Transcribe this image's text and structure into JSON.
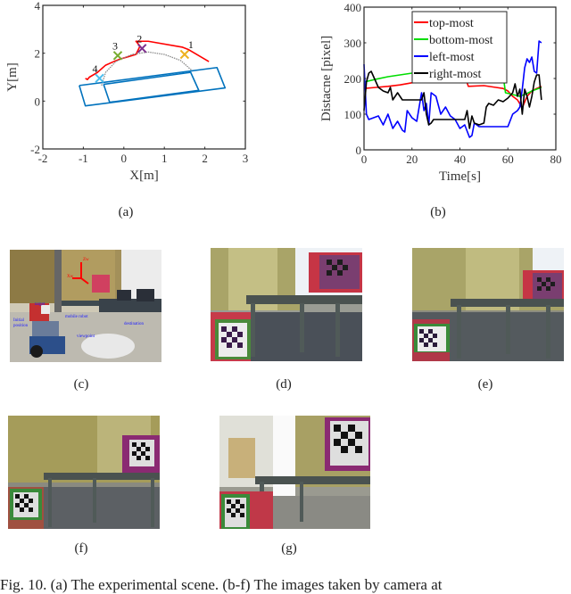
{
  "chart_data": [
    {
      "id": "a",
      "type": "line",
      "title": "",
      "xlabel": "X[m]",
      "ylabel": "Y[m]",
      "xlim": [
        -2,
        3
      ],
      "ylim": [
        -2,
        4
      ],
      "xticks": [
        "-2",
        "-1",
        "0",
        "1",
        "2",
        "3"
      ],
      "yticks": [
        "-2",
        "0",
        "2",
        "4"
      ],
      "grid": false,
      "series": [
        {
          "name": "robot-trajectory",
          "color": "#ff0000",
          "points": [
            [
              -0.95,
              0.95
            ],
            [
              -0.9,
              0.9
            ],
            [
              -0.85,
              1.0
            ],
            [
              -0.65,
              1.2
            ],
            [
              -0.45,
              1.5
            ],
            [
              -0.25,
              1.65
            ],
            [
              -0.1,
              1.75
            ],
            [
              0.1,
              1.85
            ],
            [
              0.3,
              1.95
            ],
            [
              0.4,
              2.3
            ],
            [
              0.3,
              2.5
            ],
            [
              0.6,
              2.5
            ],
            [
              1.45,
              2.25
            ],
            [
              1.6,
              2.15
            ],
            [
              2.1,
              1.65
            ]
          ]
        },
        {
          "name": "reference-arc",
          "color": "#8c8c8c",
          "points": [
            [
              -0.55,
              0.65
            ],
            [
              -0.45,
              1.2
            ],
            [
              -0.2,
              1.65
            ],
            [
              0.2,
              1.95
            ],
            [
              0.6,
              2.05
            ],
            [
              1.0,
              1.95
            ],
            [
              1.4,
              1.7
            ],
            [
              1.7,
              1.25
            ]
          ]
        },
        {
          "name": "table-outline-outer",
          "color": "#0072bd",
          "points": [
            [
              -1.1,
              0.65
            ],
            [
              2.3,
              1.4
            ],
            [
              2.5,
              0.55
            ],
            [
              -0.95,
              -0.2
            ],
            [
              -1.1,
              0.65
            ]
          ]
        },
        {
          "name": "table-outline-inner",
          "color": "#0072bd",
          "points": [
            [
              -0.5,
              0.7
            ],
            [
              1.65,
              1.2
            ],
            [
              1.85,
              0.45
            ],
            [
              -0.35,
              -0.05
            ],
            [
              -0.5,
              0.7
            ]
          ]
        }
      ],
      "markers": [
        {
          "label": "1",
          "x": 1.5,
          "y": 1.95,
          "color": "#edb120"
        },
        {
          "label": "2",
          "x": 0.45,
          "y": 2.2,
          "color": "#7e2f8e"
        },
        {
          "label": "3",
          "x": -0.15,
          "y": 1.9,
          "color": "#77ac30"
        },
        {
          "label": "4",
          "x": -0.6,
          "y": 0.95,
          "color": "#4dbeee"
        }
      ]
    },
    {
      "id": "b",
      "type": "line",
      "title": "",
      "xlabel": "Time[s]",
      "ylabel": "Distacne [pixel]",
      "xlim": [
        0,
        80
      ],
      "ylim": [
        0,
        400
      ],
      "xticks": [
        "0",
        "20",
        "40",
        "60",
        "80"
      ],
      "yticks": [
        "0",
        "100",
        "200",
        "300",
        "400"
      ],
      "grid": false,
      "legend_position": "top-center",
      "series": [
        {
          "name": "top-most",
          "color": "#ff0000",
          "x": [
            0,
            5,
            10,
            15,
            20,
            25,
            30,
            35,
            40,
            43,
            43.5,
            50,
            55,
            58,
            60,
            62,
            64,
            66,
            68,
            70,
            72,
            74
          ],
          "values": [
            172,
            175,
            178,
            182,
            188,
            190,
            190,
            190,
            190,
            188,
            178,
            180,
            175,
            172,
            165,
            150,
            140,
            118,
            150,
            165,
            172,
            178
          ]
        },
        {
          "name": "bottom-most",
          "color": "#00dd00",
          "x": [
            0,
            5,
            10,
            15,
            20,
            25,
            30,
            35,
            40,
            45,
            50,
            55,
            58,
            59,
            62,
            65,
            68,
            70,
            72,
            74
          ],
          "values": [
            190,
            198,
            205,
            210,
            215,
            215,
            215,
            215,
            215,
            215,
            215,
            215,
            210,
            160,
            155,
            150,
            158,
            165,
            170,
            175
          ]
        },
        {
          "name": "left-most",
          "color": "#0000ff",
          "x": [
            0,
            1,
            2,
            4,
            6,
            8,
            10,
            12,
            14,
            16,
            17,
            18,
            20,
            22,
            24,
            25,
            26,
            27,
            28,
            30,
            32,
            34,
            36,
            38,
            40,
            42,
            44,
            45,
            46,
            48,
            50,
            52,
            56,
            59,
            60,
            62,
            64,
            65,
            66,
            67,
            68,
            69,
            70,
            71,
            72,
            73,
            74
          ],
          "values": [
            240,
            100,
            85,
            90,
            95,
            70,
            100,
            60,
            80,
            55,
            50,
            110,
            90,
            80,
            160,
            110,
            130,
            70,
            160,
            150,
            100,
            120,
            95,
            85,
            60,
            70,
            35,
            40,
            75,
            65,
            65,
            65,
            65,
            65,
            65,
            100,
            110,
            120,
            170,
            230,
            255,
            245,
            260,
            220,
            215,
            305,
            300
          ]
        },
        {
          "name": "right-most",
          "color": "#000000",
          "x": [
            0,
            1,
            2,
            3,
            4,
            6,
            8,
            10,
            11,
            12,
            14,
            16,
            18,
            20,
            22,
            24,
            25,
            26,
            27,
            28,
            29,
            30,
            32,
            34,
            36,
            38,
            40,
            42,
            43,
            44,
            45,
            46,
            48,
            50,
            51,
            52,
            54,
            56,
            58,
            60,
            62,
            63,
            64,
            65,
            66,
            67,
            68,
            69,
            70,
            71,
            72,
            73,
            74
          ],
          "values": [
            110,
            190,
            215,
            220,
            205,
            175,
            165,
            160,
            175,
            140,
            160,
            140,
            140,
            140,
            140,
            140,
            160,
            100,
            70,
            75,
            85,
            85,
            85,
            85,
            85,
            85,
            85,
            85,
            110,
            60,
            95,
            75,
            70,
            75,
            120,
            130,
            125,
            140,
            135,
            145,
            160,
            185,
            150,
            170,
            100,
            170,
            150,
            120,
            150,
            190,
            210,
            210,
            140
          ]
        }
      ]
    }
  ],
  "subfigures": [
    {
      "id": "a",
      "label": "(a)"
    },
    {
      "id": "b",
      "label": "(b)"
    },
    {
      "id": "c",
      "label": "(c)",
      "description": "experimental scene photo with mobile robot, target box and coordinate axes",
      "annotations": [
        "target",
        "mobile robot",
        "Initial position",
        "viewpoint",
        "destination",
        "target",
        "Xw",
        "Yw",
        "Zw"
      ]
    },
    {
      "id": "d",
      "label": "(d)",
      "description": "robot camera image showing table and checkerboard boxes"
    },
    {
      "id": "e",
      "label": "(e)",
      "description": "robot camera image showing table and checkerboard boxes"
    },
    {
      "id": "f",
      "label": "(f)",
      "description": "robot camera image showing table and checkerboard boxes"
    },
    {
      "id": "g",
      "label": "(g)",
      "description": "robot camera image showing table and checkerboard boxes near window"
    }
  ],
  "caption": "Fig. 10.   (a) The experimental scene. (b-f) The images taken by camera at"
}
